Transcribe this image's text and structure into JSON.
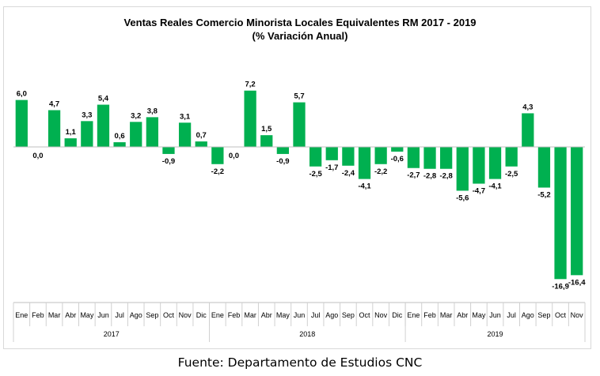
{
  "chart_data": {
    "type": "bar",
    "title": "Ventas Reales Comercio Minorista  Locales Equivalentes  RM 2017 - 2019",
    "subtitle": "(% Variación Anual)",
    "categories": [
      "Ene",
      "Feb",
      "Mar",
      "Abr",
      "May",
      "Jun",
      "Jul",
      "Ago",
      "Sep",
      "Oct",
      "Nov",
      "Dic",
      "Ene",
      "Feb",
      "Mar",
      "Abr",
      "May",
      "Jun",
      "Jul",
      "Ago",
      "Sep",
      "Oct",
      "Nov",
      "Dic",
      "Ene",
      "Feb",
      "Mar",
      "Abr",
      "May",
      "Jun",
      "Jul",
      "Ago",
      "Sep",
      "Oct",
      "Nov"
    ],
    "values": [
      6.0,
      0.0,
      4.7,
      1.1,
      3.3,
      5.4,
      0.6,
      3.2,
      3.8,
      -0.9,
      3.1,
      0.7,
      -2.2,
      0.0,
      7.2,
      1.5,
      -0.9,
      5.7,
      -2.5,
      -1.7,
      -2.4,
      -4.1,
      -2.2,
      -0.6,
      -2.7,
      -2.8,
      -2.8,
      -5.6,
      -4.7,
      -4.1,
      -2.5,
      4.3,
      -5.2,
      -16.9,
      -16.4
    ],
    "data_labels": [
      "6,0",
      "0,0",
      "4,7",
      "1,1",
      "3,3",
      "5,4",
      "0,6",
      "3,2",
      "3,8",
      "-0,9",
      "3,1",
      "0,7",
      "-2,2",
      "0,0",
      "7,2",
      "1,5",
      "-0,9",
      "5,7",
      "-2,5",
      "-1,7",
      "-2,4",
      "-4,1",
      "-2,2",
      "-0,6",
      "-2,7",
      "-2,8",
      "-2,8",
      "-5,6",
      "-4,7",
      "-4,1",
      "-2,5",
      "4,3",
      "-5,2",
      "-16,9",
      "-16,4"
    ],
    "year_groups": [
      {
        "label": "2017",
        "count": 12
      },
      {
        "label": "2018",
        "count": 12
      },
      {
        "label": "2019",
        "count": 11
      }
    ],
    "ylim": [
      -18.0,
      7.5
    ],
    "grid": false,
    "bar_color": "#00b050"
  },
  "source_note": "Fuente: Departamento de Estudios CNC"
}
